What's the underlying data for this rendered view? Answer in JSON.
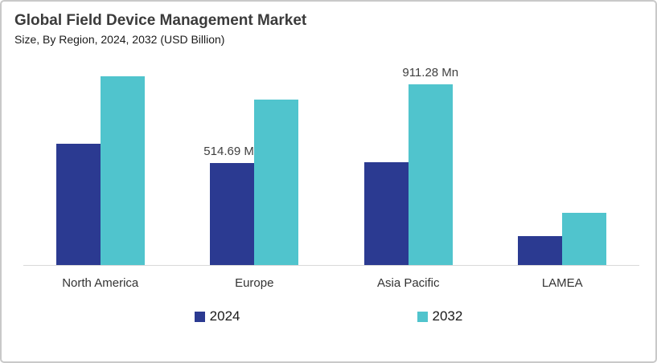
{
  "header": {
    "title": "Global Field Device Management Market",
    "subtitle": "Size, By Region, 2024, 2032 (USD Billion)"
  },
  "colors": {
    "series_2024": "#2b3a91",
    "series_2032": "#50c4cd",
    "axis_line": "#d9d9d9",
    "card_border": "#c9c9c9",
    "title_text": "#3b3b3b",
    "label_text": "#3f3f3f"
  },
  "chart_data": {
    "type": "bar",
    "title": "Global Field Device Management Market",
    "subtitle": "Size, By Region, 2024, 2032 (USD Billion)",
    "unit": "USD Million",
    "categories": [
      "North America",
      "Europe",
      "Asia Pacific",
      "LAMEA"
    ],
    "series": [
      {
        "name": "2024",
        "color": "#2b3a91",
        "values": [
          610,
          514.69,
          520,
          145
        ],
        "labels": [
          null,
          "514.69 Mn",
          null,
          null
        ]
      },
      {
        "name": "2032",
        "color": "#50c4cd",
        "values": [
          950,
          835,
          911.28,
          265
        ],
        "labels": [
          null,
          null,
          "911.28 Mn",
          null
        ]
      }
    ],
    "ylim": [
      0,
      1000
    ],
    "grid": false,
    "y_axis_visible": false,
    "legend_position": "bottom",
    "legend": [
      "2024",
      "2032"
    ]
  }
}
